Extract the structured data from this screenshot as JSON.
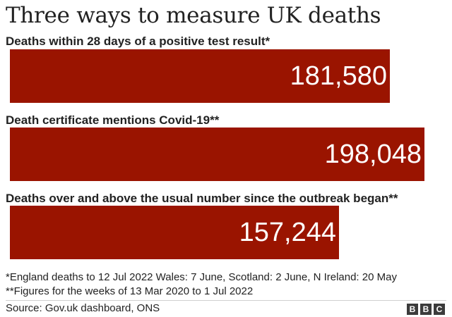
{
  "title": "Three ways to measure UK deaths",
  "chart_data": {
    "type": "bar",
    "orientation": "horizontal",
    "categories": [
      "Deaths within 28 days of a positive test result*",
      "Death certificate mentions Covid-19**",
      "Deaths over and above the usual number since the outbreak began**"
    ],
    "values": [
      181580,
      198048,
      157244
    ],
    "value_labels": [
      "181,580",
      "198,048",
      "157,244"
    ],
    "bar_color": "#9a1400",
    "grid": false
  },
  "notes": [
    "*England deaths to 12 Jul 2022 Wales: 7 June, Scotland: 2 June, N Ireland: 20 May",
    "**Figures for the weeks of 13 Mar 2020 to 1 Jul 2022"
  ],
  "source": "Source: Gov.uk dashboard, ONS",
  "logo": [
    "B",
    "B",
    "C"
  ]
}
